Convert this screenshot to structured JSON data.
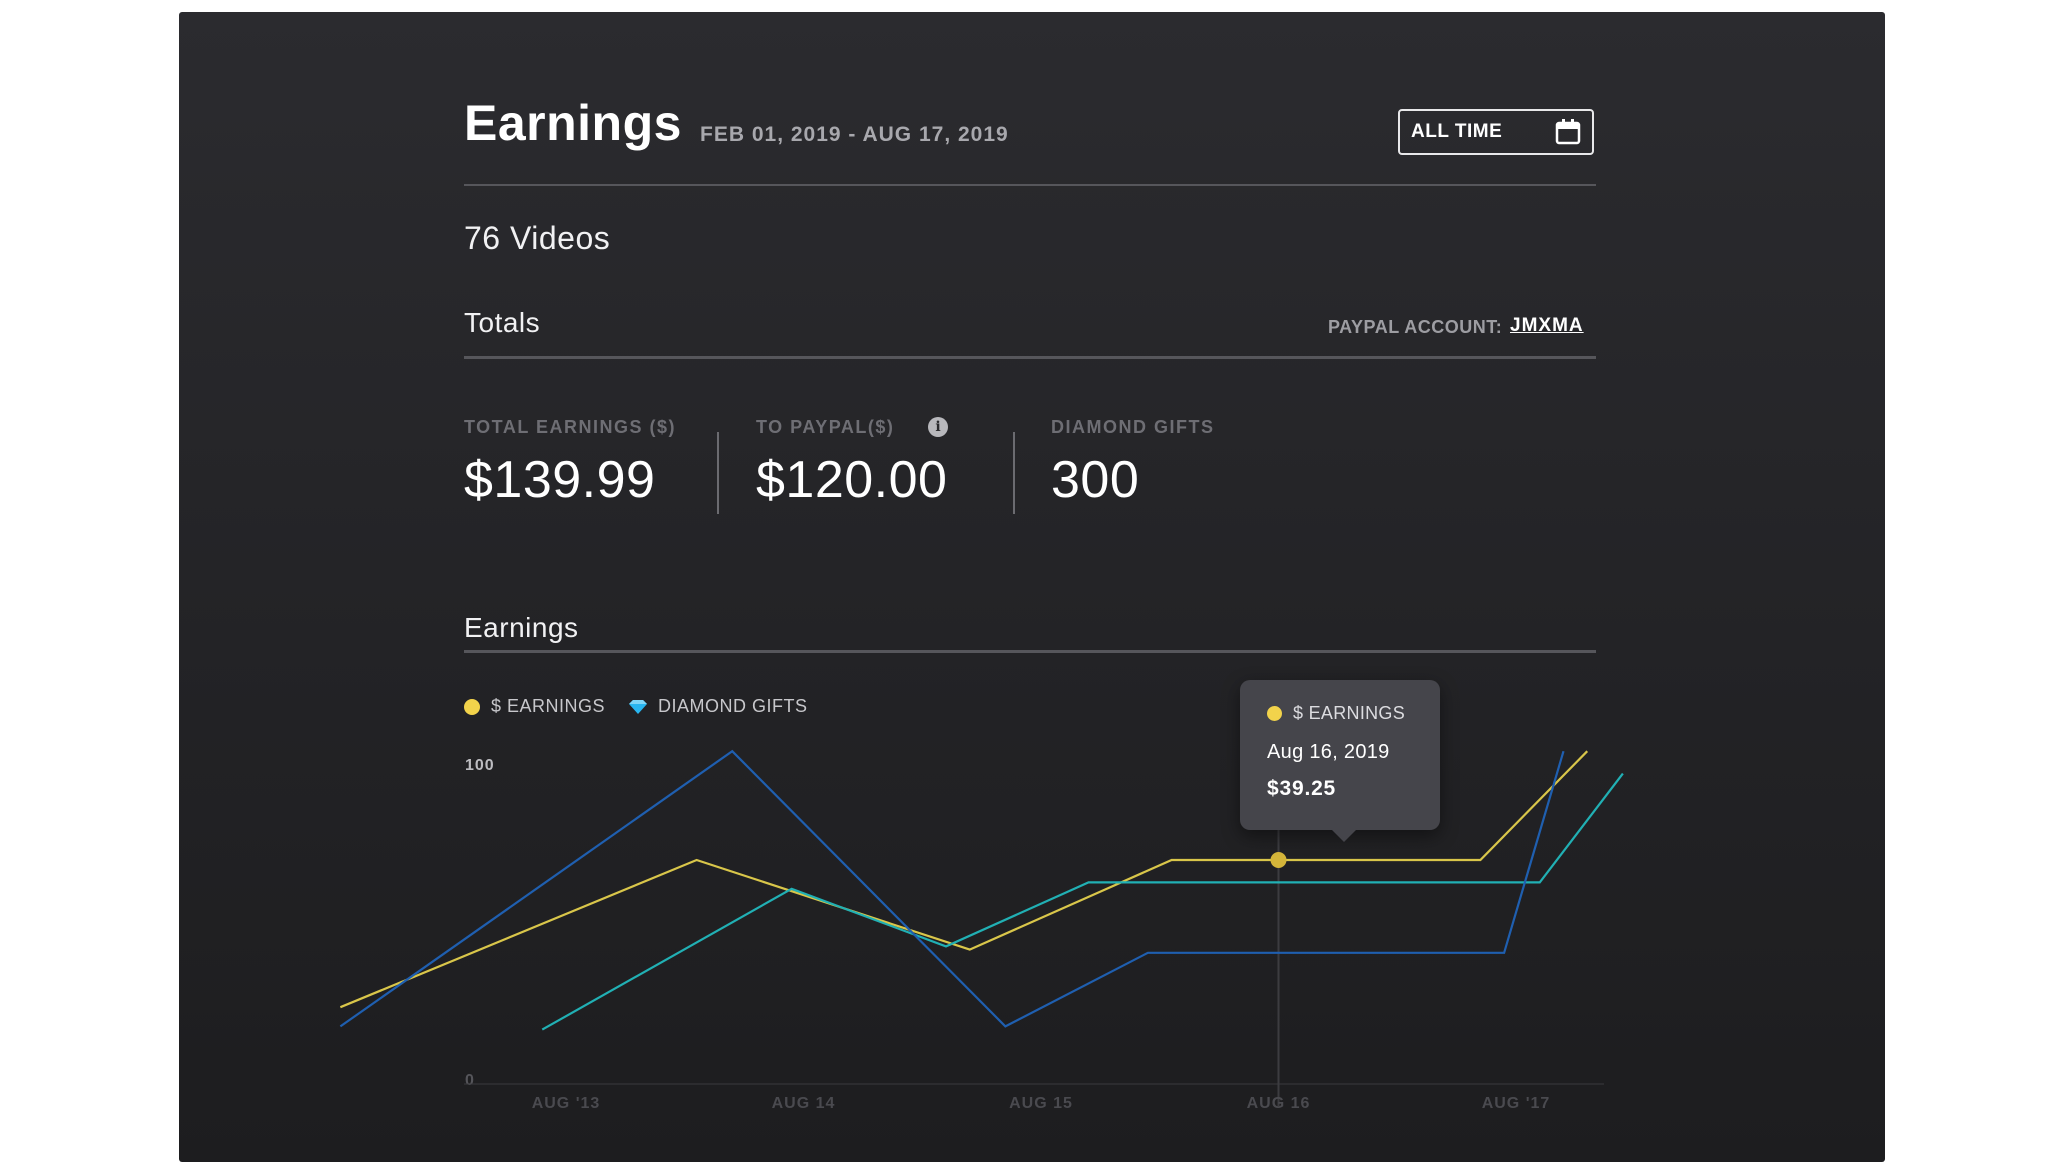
{
  "header": {
    "title": "Earnings",
    "date_range": "FEB 01, 2019 - AUG 17, 2019",
    "period_button": "ALL TIME"
  },
  "videos_count": "76 Videos",
  "totals": {
    "title": "Totals",
    "paypal_label": "PAYPAL ACCOUNT:",
    "paypal_account": "JMXMA",
    "stats": [
      {
        "label": "TOTAL EARNINGS ($)",
        "value": "$139.99"
      },
      {
        "label": "TO PAYPAL($)",
        "value": "$120.00"
      },
      {
        "label": "DIAMOND GIFTS",
        "value": "300"
      }
    ]
  },
  "earnings_section": {
    "title": "Earnings",
    "legend": [
      {
        "label": "$ EARNINGS",
        "color": "#f2d34b",
        "icon": "yellow-dot"
      },
      {
        "label": "DIAMOND GIFTS",
        "color": "#29b6f0",
        "icon": "diamond-icon"
      }
    ],
    "tooltip": {
      "series": "$ EARNINGS",
      "date": "Aug 16, 2019",
      "value": "$39.25"
    }
  },
  "colors": {
    "earnings": "#d9c64a",
    "teal": "#21b0b4",
    "blue": "#1f5fb0"
  },
  "chart_data": {
    "type": "line",
    "x_tick_labels": [
      "AUG '13",
      "AUG 14",
      "AUG 15",
      "AUG 16",
      "AUG '17"
    ],
    "y_tick_labels": [
      "100",
      "0"
    ],
    "ylim": [
      0,
      100
    ],
    "series": [
      {
        "name": "$ EARNINGS",
        "color": "#d9c64a",
        "points": [
          [
            -0.95,
            24
          ],
          [
            0.55,
            70
          ],
          [
            1.7,
            42
          ],
          [
            2.55,
            70
          ],
          [
            3.85,
            70
          ],
          [
            4.3,
            104
          ]
        ]
      },
      {
        "color": "#21b0b4",
        "points": [
          [
            -0.1,
            17
          ],
          [
            0.95,
            61
          ],
          [
            1.6,
            43
          ],
          [
            2.2,
            63
          ],
          [
            4.1,
            63
          ],
          [
            4.45,
            97
          ]
        ]
      },
      {
        "color": "#1f5fb0",
        "points": [
          [
            -0.95,
            18
          ],
          [
            0.7,
            104
          ],
          [
            1.85,
            18
          ],
          [
            2.45,
            41
          ],
          [
            3.95,
            41
          ],
          [
            4.2,
            104
          ]
        ]
      }
    ],
    "highlight": {
      "series": 0,
      "x": 3.0,
      "y": 70
    }
  }
}
